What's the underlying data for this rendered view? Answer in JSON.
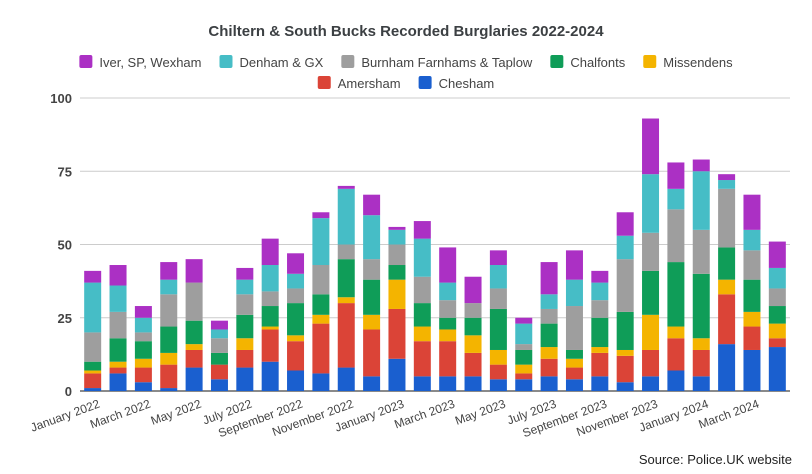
{
  "chart_data": {
    "type": "bar",
    "stacked": true,
    "title": "Chiltern & South Bucks Recorded Burglaries 2022-2024",
    "source": "Source: Police.UK website",
    "xlabel": "",
    "ylabel": "",
    "ylim": [
      0,
      100
    ],
    "yticks": [
      0,
      25,
      50,
      75,
      100
    ],
    "grid": true,
    "legend_position": "top",
    "categories": [
      "January 2022",
      "February 2022",
      "March 2022",
      "April 2022",
      "May 2022",
      "June 2022",
      "July 2022",
      "August 2022",
      "September 2022",
      "October 2022",
      "November 2022",
      "December 2022",
      "January 2023",
      "February 2023",
      "March 2023",
      "April 2023",
      "May 2023",
      "June 2023",
      "July 2023",
      "August 2023",
      "September 2023",
      "October 2023",
      "November 2023",
      "December 2023",
      "January 2024",
      "February 2024",
      "March 2024",
      "April 2024"
    ],
    "tick_labels": [
      "January 2022",
      "",
      "March 2022",
      "",
      "May 2022",
      "",
      "July 2022",
      "",
      "September 2022",
      "",
      "November 2022",
      "",
      "January 2023",
      "",
      "March 2023",
      "",
      "May 2023",
      "",
      "July 2023",
      "",
      "September 2023",
      "",
      "November 2023",
      "",
      "January 2024",
      "",
      "March 2024",
      ""
    ],
    "series": [
      {
        "name": "Chesham",
        "color": "#1a5fcf",
        "values": [
          1,
          6,
          3,
          1,
          8,
          4,
          8,
          10,
          7,
          6,
          8,
          5,
          11,
          5,
          5,
          5,
          4,
          4,
          5,
          4,
          5,
          3,
          5,
          7,
          5,
          16,
          14,
          15
        ]
      },
      {
        "name": "Amersham",
        "color": "#db4437",
        "values": [
          5,
          2,
          5,
          8,
          6,
          5,
          6,
          11,
          10,
          17,
          22,
          16,
          17,
          12,
          12,
          8,
          5,
          2,
          6,
          4,
          8,
          9,
          9,
          11,
          9,
          17,
          8,
          3
        ]
      },
      {
        "name": "Missendens",
        "color": "#f4b400",
        "values": [
          1,
          2,
          3,
          4,
          2,
          0,
          4,
          1,
          2,
          3,
          2,
          5,
          10,
          5,
          4,
          6,
          5,
          3,
          4,
          3,
          2,
          2,
          12,
          4,
          4,
          5,
          5,
          5
        ]
      },
      {
        "name": "Chalfonts",
        "color": "#0f9d58",
        "values": [
          3,
          8,
          6,
          9,
          8,
          4,
          8,
          7,
          11,
          7,
          13,
          12,
          5,
          8,
          4,
          6,
          14,
          5,
          8,
          3,
          10,
          13,
          15,
          22,
          22,
          11,
          11,
          6
        ]
      },
      {
        "name": "Burnham Farnhams & Taplow",
        "color": "#9e9e9e",
        "values": [
          10,
          9,
          3,
          11,
          13,
          5,
          7,
          5,
          5,
          10,
          5,
          7,
          7,
          9,
          6,
          5,
          7,
          2,
          5,
          15,
          6,
          18,
          13,
          18,
          15,
          20,
          10,
          6
        ]
      },
      {
        "name": "Denham & GX",
        "color": "#46bdc6",
        "values": [
          17,
          9,
          5,
          5,
          0,
          3,
          5,
          9,
          5,
          16,
          19,
          15,
          5,
          13,
          6,
          0,
          8,
          7,
          5,
          9,
          6,
          8,
          20,
          7,
          20,
          3,
          7,
          7
        ]
      },
      {
        "name": "Iver, SP, Wexham",
        "color": "#ab30c4",
        "values": [
          4,
          7,
          4,
          6,
          8,
          3,
          4,
          9,
          7,
          2,
          1,
          7,
          1,
          6,
          12,
          9,
          5,
          2,
          11,
          10,
          4,
          8,
          19,
          9,
          4,
          2,
          12,
          9
        ]
      }
    ],
    "legend_rows": [
      [
        "Iver, SP, Wexham",
        "Denham & GX",
        "Burnham Farnhams & Taplow",
        "Chalfonts",
        "Missendens"
      ],
      [
        "Amersham",
        "Chesham"
      ]
    ]
  }
}
